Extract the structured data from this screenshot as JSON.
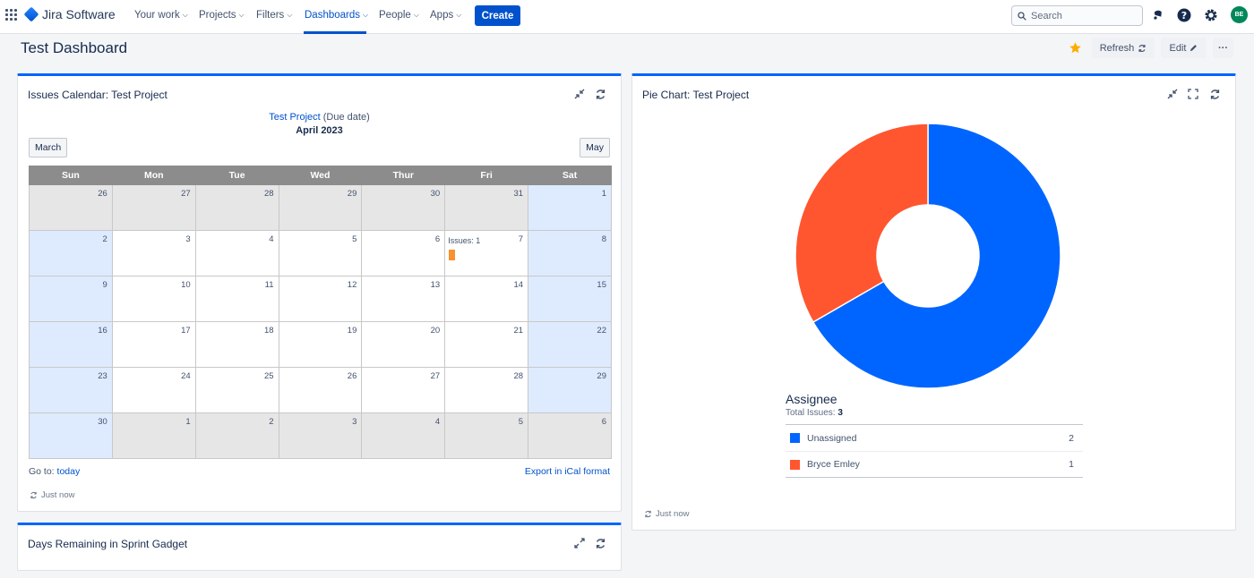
{
  "app": {
    "name": "Jira Software"
  },
  "nav": [
    {
      "label": "Your work",
      "chevron": true
    },
    {
      "label": "Projects",
      "chevron": true
    },
    {
      "label": "Filters",
      "chevron": true
    },
    {
      "label": "Dashboards",
      "chevron": true,
      "active": true
    },
    {
      "label": "People",
      "chevron": true
    },
    {
      "label": "Apps",
      "chevron": true
    }
  ],
  "create_label": "Create",
  "search": {
    "placeholder": "Search"
  },
  "icons": {
    "notifications": "bell-icon",
    "help": "help-icon",
    "settings": "gear-icon"
  },
  "user": {
    "initials": "BE"
  },
  "page": {
    "title": "Test Dashboard",
    "refresh_label": "Refresh",
    "edit_label": "Edit",
    "more_label": "···"
  },
  "colors": {
    "accent": "#0052cc",
    "gadget_border": "#0065ff",
    "star": "#ffab00",
    "unassigned": "#0065ff",
    "bryce": "#ff5630",
    "issue_marker": "#f79232"
  },
  "calendar_gadget": {
    "title": "Issues Calendar: Test Project",
    "project_link": "Test Project",
    "project_suffix": "(Due date)",
    "month": "April 2023",
    "prev_label": "March",
    "next_label": "May",
    "weekdays": [
      "Sun",
      "Mon",
      "Tue",
      "Wed",
      "Thur",
      "Fri",
      "Sat"
    ],
    "weeks": [
      [
        {
          "d": "26",
          "t": "other"
        },
        {
          "d": "27",
          "t": "other"
        },
        {
          "d": "28",
          "t": "other"
        },
        {
          "d": "29",
          "t": "other"
        },
        {
          "d": "30",
          "t": "other"
        },
        {
          "d": "31",
          "t": "other"
        },
        {
          "d": "1",
          "t": "weekend"
        }
      ],
      [
        {
          "d": "2",
          "t": "weekend"
        },
        {
          "d": "3",
          "t": "cur"
        },
        {
          "d": "4",
          "t": "cur"
        },
        {
          "d": "5",
          "t": "cur"
        },
        {
          "d": "6",
          "t": "cur"
        },
        {
          "d": "7",
          "t": "cur",
          "issues": "Issues: 1"
        },
        {
          "d": "8",
          "t": "weekend"
        }
      ],
      [
        {
          "d": "9",
          "t": "weekend"
        },
        {
          "d": "10",
          "t": "cur"
        },
        {
          "d": "11",
          "t": "cur"
        },
        {
          "d": "12",
          "t": "cur"
        },
        {
          "d": "13",
          "t": "cur"
        },
        {
          "d": "14",
          "t": "cur"
        },
        {
          "d": "15",
          "t": "weekend"
        }
      ],
      [
        {
          "d": "16",
          "t": "weekend"
        },
        {
          "d": "17",
          "t": "cur"
        },
        {
          "d": "18",
          "t": "cur"
        },
        {
          "d": "19",
          "t": "cur"
        },
        {
          "d": "20",
          "t": "cur"
        },
        {
          "d": "21",
          "t": "cur"
        },
        {
          "d": "22",
          "t": "weekend"
        }
      ],
      [
        {
          "d": "23",
          "t": "weekend"
        },
        {
          "d": "24",
          "t": "cur"
        },
        {
          "d": "25",
          "t": "cur"
        },
        {
          "d": "26",
          "t": "cur"
        },
        {
          "d": "27",
          "t": "cur"
        },
        {
          "d": "28",
          "t": "cur"
        },
        {
          "d": "29",
          "t": "weekend"
        }
      ],
      [
        {
          "d": "30",
          "t": "weekend"
        },
        {
          "d": "1",
          "t": "other"
        },
        {
          "d": "2",
          "t": "other"
        },
        {
          "d": "3",
          "t": "other"
        },
        {
          "d": "4",
          "t": "other"
        },
        {
          "d": "5",
          "t": "other"
        },
        {
          "d": "6",
          "t": "other"
        }
      ]
    ],
    "goto_label": "Go to:",
    "today_link": "today",
    "export_link": "Export in iCal format",
    "updated": "Just now"
  },
  "sprint_gadget": {
    "title": "Days Remaining in Sprint Gadget"
  },
  "pie_gadget": {
    "title": "Pie Chart: Test Project",
    "legend_title": "Assignee",
    "total_label": "Total Issues:",
    "total_value": "3",
    "updated": "Just now"
  },
  "chart_data": {
    "type": "pie",
    "title": "Pie Chart: Test Project",
    "categories": [
      "Unassigned",
      "Bryce Emley"
    ],
    "values": [
      2,
      1
    ],
    "colors": [
      "#0065ff",
      "#ff5630"
    ],
    "legend": "below"
  }
}
